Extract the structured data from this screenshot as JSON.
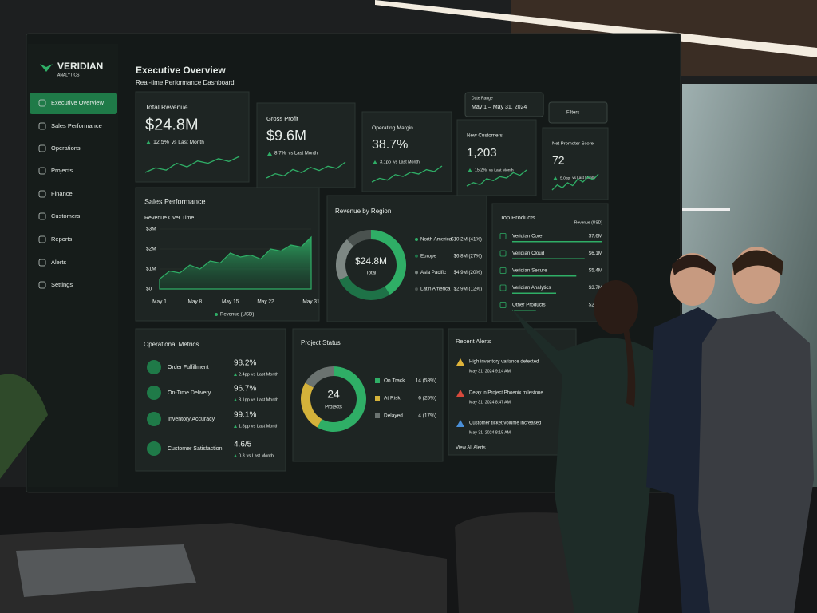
{
  "sidebar": {
    "brand": "VERIDIAN",
    "tagline": "ANALYTICS",
    "items": [
      "Executive Overview",
      "Sales Performance",
      "Operations",
      "Projects",
      "Finance",
      "Customers",
      "Reports",
      "Alerts",
      "Settings"
    ]
  },
  "header": {
    "title": "Executive Overview",
    "subtitle": "Real-time Performance Dashboard",
    "date_label": "Date Range",
    "date_value": "May 1 – May 31, 2024",
    "filters": "Filters"
  },
  "kpis": [
    {
      "label": "Total Revenue",
      "value": "$24.8M",
      "change": "12.5%",
      "note": "vs Last Month",
      "trend": [
        3,
        4,
        3.5,
        5,
        4.2,
        5.5,
        5,
        6,
        5.4,
        6.5
      ]
    },
    {
      "label": "Gross Profit",
      "value": "$9.6M",
      "change": "8.7%",
      "note": "vs Last Month",
      "trend": [
        3,
        3.8,
        3.4,
        4.6,
        4,
        5,
        4.4,
        5.2,
        4.8,
        6
      ]
    },
    {
      "label": "Operating Margin",
      "value": "38.7%",
      "change": "3.1pp",
      "note": "vs Last Month",
      "trend": [
        3,
        3.6,
        3.3,
        4.2,
        3.9,
        4.6,
        4.3,
        5,
        4.7,
        5.6
      ]
    },
    {
      "label": "New Customers",
      "value": "1,203",
      "change": "15.2%",
      "note": "vs Last Month",
      "trend": [
        3,
        3.5,
        3.2,
        4.1,
        3.8,
        4.4,
        4.2,
        5,
        4.6,
        5.4
      ]
    },
    {
      "label": "Net Promoter Score",
      "value": "72",
      "change": "5.0pp",
      "note": "vs Last Month",
      "trend": [
        3,
        3.7,
        3.3,
        4,
        3.6,
        4.5,
        4.1,
        4.8,
        4.4,
        5.2
      ]
    }
  ],
  "sales": {
    "type": "area",
    "title": "Sales Performance",
    "subtitle": "Revenue Over Time",
    "legend": "Revenue (USD)",
    "color": "#2fae66",
    "x": [
      1,
      3,
      5,
      7,
      9,
      11,
      13,
      15,
      17,
      19,
      21,
      23,
      25,
      27,
      29,
      31
    ],
    "values": [
      0.5,
      0.9,
      0.8,
      1.2,
      1.0,
      1.4,
      1.3,
      1.8,
      1.6,
      1.7,
      1.5,
      2.0,
      1.9,
      2.2,
      2.1,
      2.6
    ],
    "xlim": [
      1,
      31
    ],
    "xticks": [
      {
        "value": 1,
        "label": "May 1"
      },
      {
        "value": 8,
        "label": "May 8"
      },
      {
        "value": 15,
        "label": "May 15"
      },
      {
        "value": 22,
        "label": "May 22"
      },
      {
        "value": 31,
        "label": "May 31"
      }
    ],
    "ylim": [
      0,
      3
    ],
    "yticks": [
      {
        "value": 0,
        "label": "$0"
      },
      {
        "value": 1,
        "label": "$1M"
      },
      {
        "value": 2,
        "label": "$2M"
      },
      {
        "value": 3,
        "label": "$3M"
      }
    ]
  },
  "region": {
    "type": "pie",
    "title": "Revenue by Region",
    "center_value": "$24.8M",
    "center_label": "Total",
    "categories": [
      "North America",
      "Europe",
      "Asia Pacific",
      "Latin America"
    ],
    "values": [
      41,
      27,
      20,
      12
    ],
    "value_labels": [
      "$10.2M (41%)",
      "$6.8M (27%)",
      "$4.9M (20%)",
      "$2.9M (12%)"
    ],
    "colors": [
      "#2fae66",
      "#1e7247",
      "#7d8783",
      "#4a524f"
    ]
  },
  "products": {
    "title": "Top Products",
    "unit": "Revenue (USD)",
    "categories": [
      "Veridian Core",
      "Veridian Cloud",
      "Veridian Secure",
      "Veridian Analytics",
      "Other Products"
    ],
    "values": [
      7.6,
      6.1,
      5.4,
      3.7,
      2.0
    ],
    "value_labels": [
      "$7.6M",
      "$6.1M",
      "$5.4M",
      "$3.7M",
      "$2.0M"
    ]
  },
  "operations": {
    "title": "Operational Metrics",
    "items": [
      {
        "label": "Order Fulfillment",
        "value": "98.2%",
        "change": "2.4pp",
        "note": "vs Last Month"
      },
      {
        "label": "On-Time Delivery",
        "value": "96.7%",
        "change": "3.1pp",
        "note": "vs Last Month"
      },
      {
        "label": "Inventory Accuracy",
        "value": "99.1%",
        "change": "1.8pp",
        "note": "vs Last Month"
      },
      {
        "label": "Customer Satisfaction",
        "value": "4.6/5",
        "change": "0.3",
        "note": "vs Last Month"
      }
    ]
  },
  "projects": {
    "type": "pie",
    "title": "Project Status",
    "center_value": "24",
    "center_label": "Projects",
    "categories": [
      "On Track",
      "At Risk",
      "Delayed"
    ],
    "values": [
      14,
      6,
      4
    ],
    "value_labels": [
      "14 (58%)",
      "6 (25%)",
      "4 (17%)"
    ],
    "colors": [
      "#2fae66",
      "#d4b23a",
      "#6b7370"
    ]
  },
  "alerts": {
    "title": "Recent Alerts",
    "items": [
      {
        "text": "High inventory variance detected",
        "time": "May 31, 2024 9:14 AM",
        "color": "#e0b43a"
      },
      {
        "text": "Delay in Project Phoenix milestone",
        "time": "May 31, 2024 8:47 AM",
        "color": "#d84a3c"
      },
      {
        "text": "Customer ticket volume increased",
        "time": "May 31, 2024 8:15 AM",
        "color": "#4a8fd8"
      }
    ],
    "link": "View All Alerts"
  }
}
